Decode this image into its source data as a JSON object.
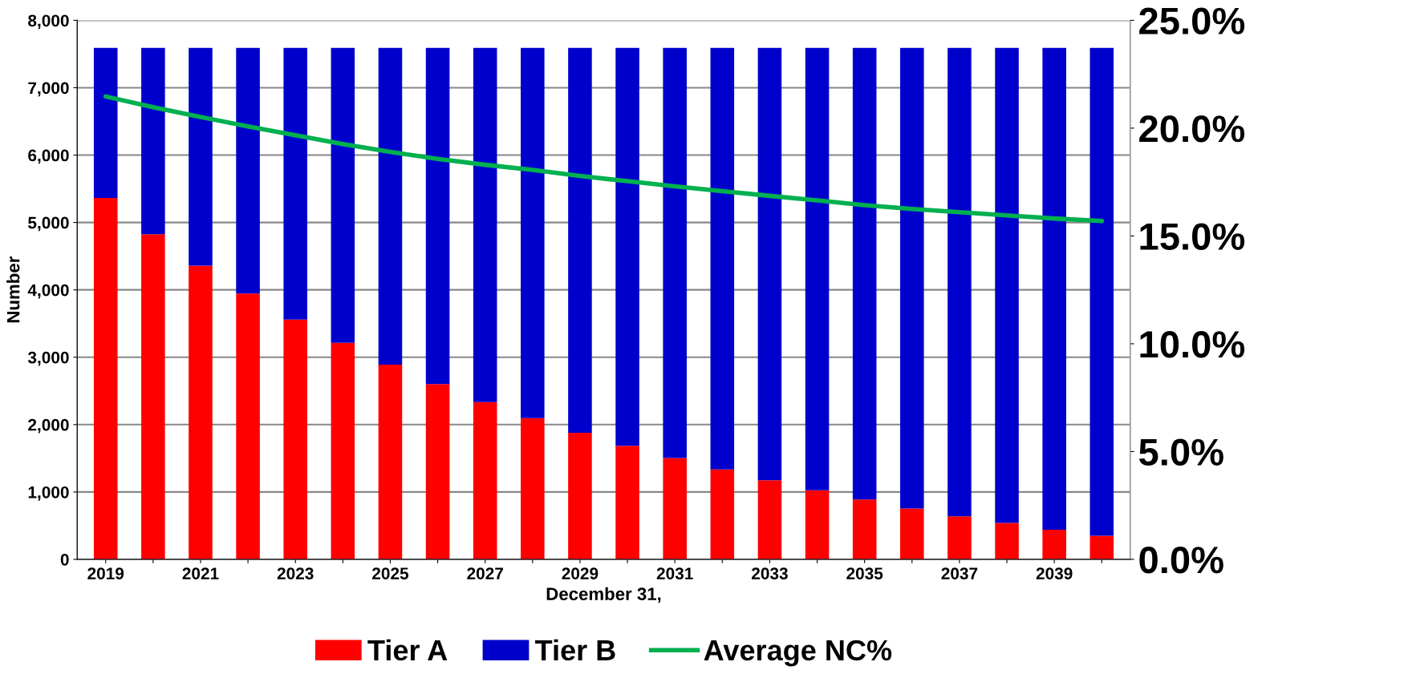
{
  "chart_data": {
    "type": "bar",
    "stacked": true,
    "xlabel": "December 31,",
    "ylabel": "Number",
    "categories": [
      "2019",
      null,
      "2021",
      null,
      "2023",
      null,
      "2025",
      null,
      "2027",
      null,
      "2029",
      null,
      "2031",
      null,
      "2033",
      null,
      "2035",
      null,
      "2037",
      null,
      "2039",
      null
    ],
    "series": [
      {
        "name": "Tier A",
        "color": "#ff0000",
        "values": [
          5365,
          4825,
          4360,
          3945,
          3560,
          3215,
          2890,
          2600,
          2335,
          2095,
          1880,
          1685,
          1505,
          1335,
          1175,
          1025,
          890,
          755,
          640,
          540,
          440,
          350
        ]
      },
      {
        "name": "Tier B",
        "color": "#0000cc",
        "values": [
          2225,
          2765,
          3230,
          3645,
          4030,
          4375,
          4700,
          4990,
          5255,
          5495,
          5710,
          5905,
          6085,
          6255,
          6415,
          6565,
          6700,
          6835,
          6950,
          7050,
          7150,
          7240
        ]
      },
      {
        "name": "Average NC%",
        "color": "#00b050",
        "type": "line",
        "axis": "y2",
        "values": [
          21.47,
          20.97,
          20.52,
          20.08,
          19.67,
          19.26,
          18.9,
          18.57,
          18.3,
          18.06,
          17.78,
          17.54,
          17.3,
          17.08,
          16.86,
          16.65,
          16.43,
          16.25,
          16.1,
          15.95,
          15.81,
          15.69
        ]
      }
    ],
    "ylim": [
      0,
      8000
    ],
    "yticks": [
      {
        "value": 0,
        "label": "0"
      },
      {
        "value": 1000,
        "label": "1,000"
      },
      {
        "value": 2000,
        "label": "2,000"
      },
      {
        "value": 3000,
        "label": "3,000"
      },
      {
        "value": 4000,
        "label": "4,000"
      },
      {
        "value": 5000,
        "label": "5,000"
      },
      {
        "value": 6000,
        "label": "6,000"
      },
      {
        "value": 7000,
        "label": "7,000"
      },
      {
        "value": 8000,
        "label": "8,000"
      }
    ],
    "y2lim": [
      0,
      25
    ],
    "y2ticks": [
      {
        "value": 0,
        "label": "0.0%"
      },
      {
        "value": 5,
        "label": "5.0%"
      },
      {
        "value": 10,
        "label": "10.0%"
      },
      {
        "value": 15,
        "label": "15.0%"
      },
      {
        "value": 20,
        "label": "20.0%"
      },
      {
        "value": 25,
        "label": "25.0%"
      }
    ],
    "grid": "y",
    "legend": "bottom",
    "marker": "none",
    "line_style": "solid"
  }
}
